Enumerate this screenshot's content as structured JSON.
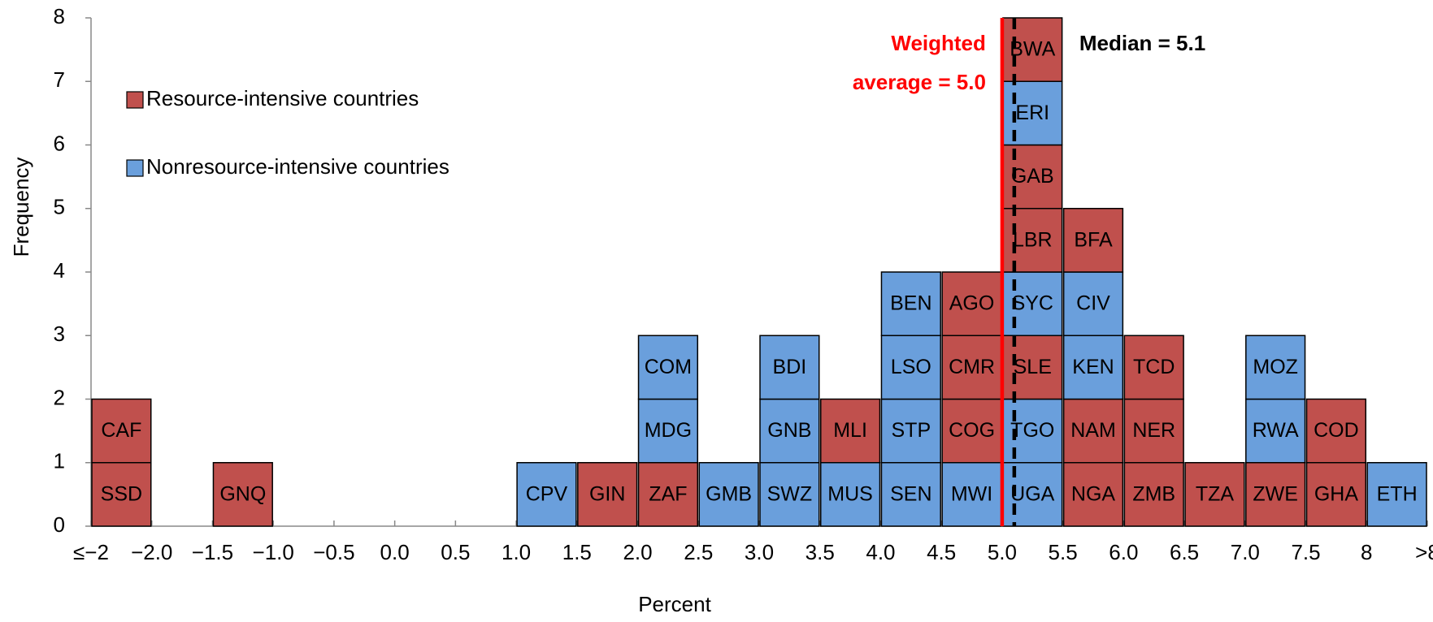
{
  "chart_data": {
    "type": "stacked_histogram",
    "xlabel": "Percent",
    "ylabel": "Frequency",
    "bins": [
      -2.5,
      -2,
      -1.5,
      -1,
      -0.5,
      0,
      0.5,
      1,
      1.5,
      2,
      2.5,
      3,
      3.5,
      4,
      4.5,
      5,
      5.5,
      6,
      6.5,
      7,
      7.5,
      8,
      8.5
    ],
    "counts": [
      2,
      0,
      1,
      0,
      0,
      0,
      0,
      1,
      1,
      3,
      1,
      3,
      2,
      4,
      4,
      8,
      5,
      3,
      1,
      3,
      2,
      1
    ],
    "series": [
      {
        "name": "Resource-intensive countries",
        "color": "#c0504d"
      },
      {
        "name": "Nonresource-intensive countries",
        "color": "#6a9fdc"
      }
    ],
    "stacks": [
      [
        {
          "label": "SSD",
          "series": 0
        },
        {
          "label": "CAF",
          "series": 0
        }
      ],
      [],
      [
        {
          "label": "GNQ",
          "series": 0
        }
      ],
      [],
      [],
      [],
      [],
      [
        {
          "label": "CPV",
          "series": 1
        }
      ],
      [
        {
          "label": "GIN",
          "series": 0
        }
      ],
      [
        {
          "label": "ZAF",
          "series": 0
        },
        {
          "label": "MDG",
          "series": 1
        },
        {
          "label": "COM",
          "series": 1
        }
      ],
      [
        {
          "label": "GMB",
          "series": 1
        }
      ],
      [
        {
          "label": "SWZ",
          "series": 1
        },
        {
          "label": "GNB",
          "series": 1
        },
        {
          "label": "BDI",
          "series": 1
        }
      ],
      [
        {
          "label": "MUS",
          "series": 1
        },
        {
          "label": "MLI",
          "series": 0
        }
      ],
      [
        {
          "label": "SEN",
          "series": 1
        },
        {
          "label": "STP",
          "series": 1
        },
        {
          "label": "LSO",
          "series": 1
        },
        {
          "label": "BEN",
          "series": 1
        }
      ],
      [
        {
          "label": "MWI",
          "series": 1
        },
        {
          "label": "COG",
          "series": 0
        },
        {
          "label": "CMR",
          "series": 0
        },
        {
          "label": "AGO",
          "series": 0
        }
      ],
      [
        {
          "label": "UGA",
          "series": 1
        },
        {
          "label": "TGO",
          "series": 1
        },
        {
          "label": "SLE",
          "series": 0
        },
        {
          "label": "SYC",
          "series": 1
        },
        {
          "label": "LBR",
          "series": 0
        },
        {
          "label": "GAB",
          "series": 0
        },
        {
          "label": "ERI",
          "series": 1
        },
        {
          "label": "BWA",
          "series": 0
        }
      ],
      [
        {
          "label": "NGA",
          "series": 0
        },
        {
          "label": "NAM",
          "series": 0
        },
        {
          "label": "KEN",
          "series": 1
        },
        {
          "label": "CIV",
          "series": 1
        },
        {
          "label": "BFA",
          "series": 0
        }
      ],
      [
        {
          "label": "ZMB",
          "series": 0
        },
        {
          "label": "NER",
          "series": 0
        },
        {
          "label": "TCD",
          "series": 0
        }
      ],
      [
        {
          "label": "TZA",
          "series": 0
        }
      ],
      [
        {
          "label": "ZWE",
          "series": 0
        },
        {
          "label": "RWA",
          "series": 1
        },
        {
          "label": "MOZ",
          "series": 1
        }
      ],
      [
        {
          "label": "GHA",
          "series": 0
        },
        {
          "label": "COD",
          "series": 0
        }
      ],
      [
        {
          "label": "ETH",
          "series": 1
        }
      ]
    ],
    "reference_lines": [
      {
        "value": 5.0,
        "label": [
          "Weighted",
          "average = 5.0"
        ],
        "color": "#ff0000",
        "dashed": false
      },
      {
        "value": 5.1,
        "label": [
          "Median = 5.1"
        ],
        "color": "#000000",
        "dashed": true
      }
    ],
    "xlim": [
      -2.5,
      8.5
    ],
    "xticks": [
      {
        "value": -2.5,
        "label": "≤−2"
      },
      {
        "value": -2,
        "label": "−2.0"
      },
      {
        "value": -1.5,
        "label": "−1.5"
      },
      {
        "value": -1,
        "label": "−1.0"
      },
      {
        "value": -0.5,
        "label": "−0.5"
      },
      {
        "value": 0,
        "label": "0.0"
      },
      0.5,
      {
        "value": 1,
        "label": "1.0"
      },
      1.5,
      {
        "value": 2,
        "label": "2.0"
      },
      2.5,
      {
        "value": 3,
        "label": "3.0"
      },
      3.5,
      {
        "value": 4,
        "label": "4.0"
      },
      4.5,
      {
        "value": 5,
        "label": "5.0"
      },
      5.5,
      {
        "value": 6,
        "label": "6.0"
      },
      6.5,
      {
        "value": 7,
        "label": "7.0"
      },
      7.5,
      8,
      {
        "value": 8.5,
        "label": ">8"
      }
    ],
    "ylim": [
      0,
      8
    ],
    "yticks": [
      0,
      1,
      2,
      3,
      4,
      5,
      6,
      7,
      8
    ],
    "legend": "upper left"
  }
}
